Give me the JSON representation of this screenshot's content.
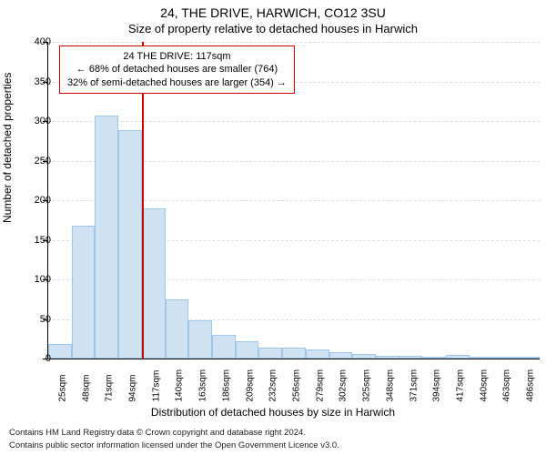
{
  "header": {
    "title": "24, THE DRIVE, HARWICH, CO12 3SU",
    "subtitle": "Size of property relative to detached houses in Harwich"
  },
  "axes": {
    "ylabel": "Number of detached properties",
    "xlabel": "Distribution of detached houses by size in Harwich",
    "ylim_max": 400,
    "ytick_step": 50,
    "yticks": [
      0,
      50,
      100,
      150,
      200,
      250,
      300,
      350,
      400
    ],
    "xticks": [
      "25sqm",
      "48sqm",
      "71sqm",
      "94sqm",
      "117sqm",
      "140sqm",
      "163sqm",
      "186sqm",
      "209sqm",
      "232sqm",
      "256sqm",
      "279sqm",
      "302sqm",
      "325sqm",
      "348sqm",
      "371sqm",
      "394sqm",
      "417sqm",
      "440sqm",
      "463sqm",
      "486sqm"
    ],
    "grid_color": "#dddddd"
  },
  "chart": {
    "type": "histogram",
    "bar_color": "#cfe2f3",
    "bar_border_color": "#9fc5e8",
    "background_color": "#ffffff",
    "values": [
      18,
      168,
      307,
      288,
      190,
      75,
      48,
      30,
      22,
      14,
      14,
      12,
      8,
      6,
      4,
      3,
      2,
      5,
      2,
      2,
      2
    ],
    "marker_line": {
      "x_index": 4,
      "color": "#cc0000"
    }
  },
  "annotation": {
    "line1": "24 THE DRIVE: 117sqm",
    "line2": "← 68% of detached houses are smaller (764)",
    "line3": "32% of semi-detached houses are larger (354) →",
    "border_color": "#cc0000",
    "background_color": "#ffffff",
    "fontsize": 11
  },
  "footer": {
    "line1": "Contains HM Land Registry data © Crown copyright and database right 2024.",
    "line2": "Contains public sector information licensed under the Open Government Licence v3.0."
  }
}
